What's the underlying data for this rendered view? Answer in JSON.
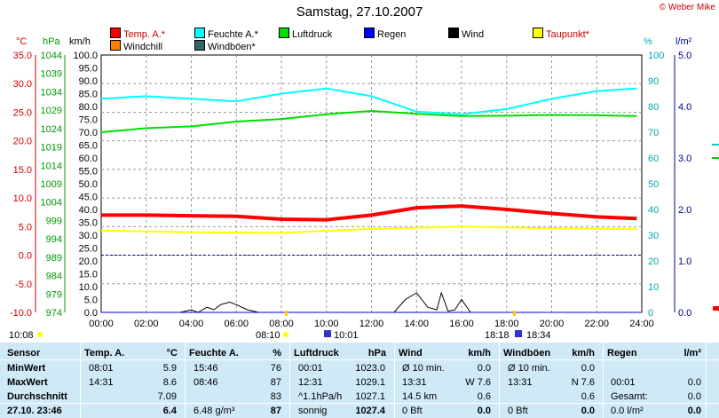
{
  "title": "Samstag, 27.10.2007",
  "copyright": "© Weber Mike",
  "legend": [
    {
      "label": "Temp. A.*",
      "color": "#ff0000"
    },
    {
      "label": "Feuchte A.*",
      "color": "#00ffff"
    },
    {
      "label": "Luftdruck",
      "color": "#00dd00"
    },
    {
      "label": "Regen",
      "color": "#0000ff"
    },
    {
      "label": "Wind",
      "color": "#000000"
    },
    {
      "label": "Taupunkt*",
      "color": "#ffff00"
    },
    {
      "label": "Windchill",
      "color": "#ff8000"
    },
    {
      "label": "Windböen*",
      "color": "#336666"
    }
  ],
  "axis_units": {
    "temp": "°C",
    "press": "hPa",
    "wind": "km/h",
    "hum": "%",
    "rain": "l/m²"
  },
  "temp_ticks": [
    "35.0",
    "30.0",
    "25.0",
    "20.0",
    "15.0",
    "10.0",
    "5.0",
    "0.0",
    "-5.0",
    "-10.0"
  ],
  "press_ticks": [
    "1044",
    "1039",
    "1034",
    "1029",
    "1024",
    "1019",
    "1014",
    "1009",
    "1004",
    "999",
    "994",
    "989",
    "984",
    "979",
    "974"
  ],
  "wind_ticks": [
    "100.0",
    "95.0",
    "90.0",
    "85.0",
    "80.0",
    "75.0",
    "70.0",
    "65.0",
    "60.0",
    "55.0",
    "50.0",
    "45.0",
    "40.0",
    "35.0",
    "30.0",
    "25.0",
    "20.0",
    "15.0",
    "10.0",
    "5.0",
    "0.0"
  ],
  "hum_ticks": [
    "100",
    "90",
    "80",
    "70",
    "60",
    "50",
    "40",
    "30",
    "20",
    "10",
    "0"
  ],
  "rain_ticks": [
    "5.0",
    "4.0",
    "3.0",
    "2.0",
    "1.0",
    "0.0"
  ],
  "time_labels": [
    "00:00",
    "02:00",
    "04:00",
    "06:00",
    "08:00",
    "10:00",
    "12:00",
    "14:00",
    "16:00",
    "18:00",
    "20:00",
    "22:00",
    "24:00"
  ],
  "sun_markers": {
    "sunrise": "08:10",
    "sunset": "18:18",
    "moonrise": "10:08",
    "moon1": "10:01",
    "moon2": "18:34"
  },
  "chart_data": {
    "type": "line",
    "x_range": [
      "00:00",
      "24:00"
    ],
    "series": [
      {
        "name": "Temp. A.*",
        "unit": "°C",
        "x": [
          0,
          2,
          4,
          6,
          8,
          10,
          12,
          14,
          16,
          18,
          20,
          22,
          23.78
        ],
        "values": [
          7.0,
          7.0,
          6.9,
          6.8,
          6.3,
          6.2,
          7.0,
          8.3,
          8.6,
          8.0,
          7.3,
          6.7,
          6.4
        ]
      },
      {
        "name": "Feuchte A.*",
        "unit": "%",
        "x": [
          0,
          2,
          4,
          6,
          8,
          10,
          12,
          14,
          16,
          18,
          20,
          22,
          23.78
        ],
        "values": [
          83,
          84,
          83,
          82,
          85,
          87,
          84,
          78,
          77,
          79,
          83,
          86,
          87
        ]
      },
      {
        "name": "Luftdruck",
        "unit": "hPa",
        "x": [
          0,
          2,
          4,
          6,
          8,
          10,
          12,
          14,
          16,
          18,
          20,
          22,
          23.78
        ],
        "values": [
          1023.0,
          1024.1,
          1024.6,
          1025.9,
          1026.6,
          1027.9,
          1028.8,
          1028.0,
          1027.4,
          1027.5,
          1027.7,
          1027.6,
          1027.4
        ]
      },
      {
        "name": "Taupunkt*",
        "unit": "°C",
        "x": [
          0,
          4,
          8,
          12,
          16,
          20,
          23.78
        ],
        "values": [
          4.3,
          4.0,
          3.9,
          4.6,
          5.0,
          4.7,
          4.6
        ]
      },
      {
        "name": "Windchill",
        "unit": "°C",
        "x": [
          0,
          2,
          4,
          6,
          8,
          10,
          12,
          14,
          16,
          18,
          20,
          22,
          23.78
        ],
        "values": [
          7.0,
          7.0,
          6.9,
          6.8,
          6.3,
          6.2,
          7.1,
          8.2,
          8.6,
          8.0,
          7.3,
          6.7,
          6.4
        ]
      },
      {
        "name": "Wind",
        "unit": "km/h",
        "x": [
          0,
          3.5,
          4.0,
          4.3,
          4.7,
          5.0,
          5.3,
          5.7,
          6.0,
          6.5,
          7,
          13.0,
          13.5,
          14.0,
          14.5,
          14.9,
          15.1,
          15.4,
          15.7,
          16.0,
          16.4,
          17
        ],
        "values": [
          0,
          0,
          1,
          0,
          2,
          1,
          3,
          4,
          3,
          1,
          0,
          0,
          5,
          7.6,
          2,
          1,
          7.6,
          0.5,
          1,
          5,
          0,
          0
        ]
      },
      {
        "name": "Regen",
        "unit": "l/m²",
        "x": [
          0,
          24
        ],
        "values": [
          0,
          0
        ]
      }
    ],
    "ref_line": {
      "axis": "temp",
      "value": 0.0
    },
    "ylim_temp": [
      -10,
      35
    ],
    "ylim_press": [
      974,
      1044
    ],
    "ylim_wind": [
      0,
      100
    ],
    "ylim_hum": [
      0,
      100
    ],
    "ylim_rain": [
      0,
      5
    ]
  },
  "table": {
    "headers": [
      "Sensor",
      "Temp. A.",
      "°C",
      "Feuchte A.",
      "%",
      "Luftdruck",
      "hPa",
      "Wind",
      "km/h",
      "Windböen",
      "km/h",
      "Regen",
      "l/m²"
    ],
    "rows": [
      {
        "label": "MinWert",
        "t_time": "08:01",
        "t_val": "5.9",
        "h_time": "15:46",
        "h_val": "76",
        "p_time": "00:01",
        "p_val": "1023.0",
        "w_text": "Ø 10 min.",
        "w_val": "0.0",
        "g_text": "Ø 10 min.",
        "g_val": "0.0",
        "r_text": "",
        "r_val": ""
      },
      {
        "label": "MaxWert",
        "t_time": "14:31",
        "t_val": "8.6",
        "h_time": "08:46",
        "h_val": "87",
        "p_time": "12:31",
        "p_val": "1029.1",
        "w_text": "13:31",
        "w_dir": "W 7.6",
        "g_text": "13:31",
        "g_dir": "N 7.6",
        "r_text": "00:01",
        "r_val": "0.0"
      },
      {
        "label": "Durchschnitt",
        "t_time": "",
        "t_val": "7.09",
        "h_time": "",
        "h_val": "83",
        "p_time": "^1.1hPa/h",
        "p_val": "1027.1",
        "w_text": "14.5 km",
        "w_val": "0.6",
        "g_text": "",
        "g_val": "0.6",
        "r_text": "Gesamt:",
        "r_val": "0.0"
      },
      {
        "label": "27.10. 23:46",
        "t_time": "",
        "t_val": "6.4",
        "h_time": "6.48 g/m³",
        "h_val": "87",
        "p_time": "sonnig",
        "p_val": "1027.4",
        "w_text": "0 Bft",
        "w_val": "0.0",
        "g_text": "0 Bft",
        "g_val": "0.0",
        "r_text": "0.0 l/m²",
        "r_val": "0.0"
      }
    ]
  }
}
